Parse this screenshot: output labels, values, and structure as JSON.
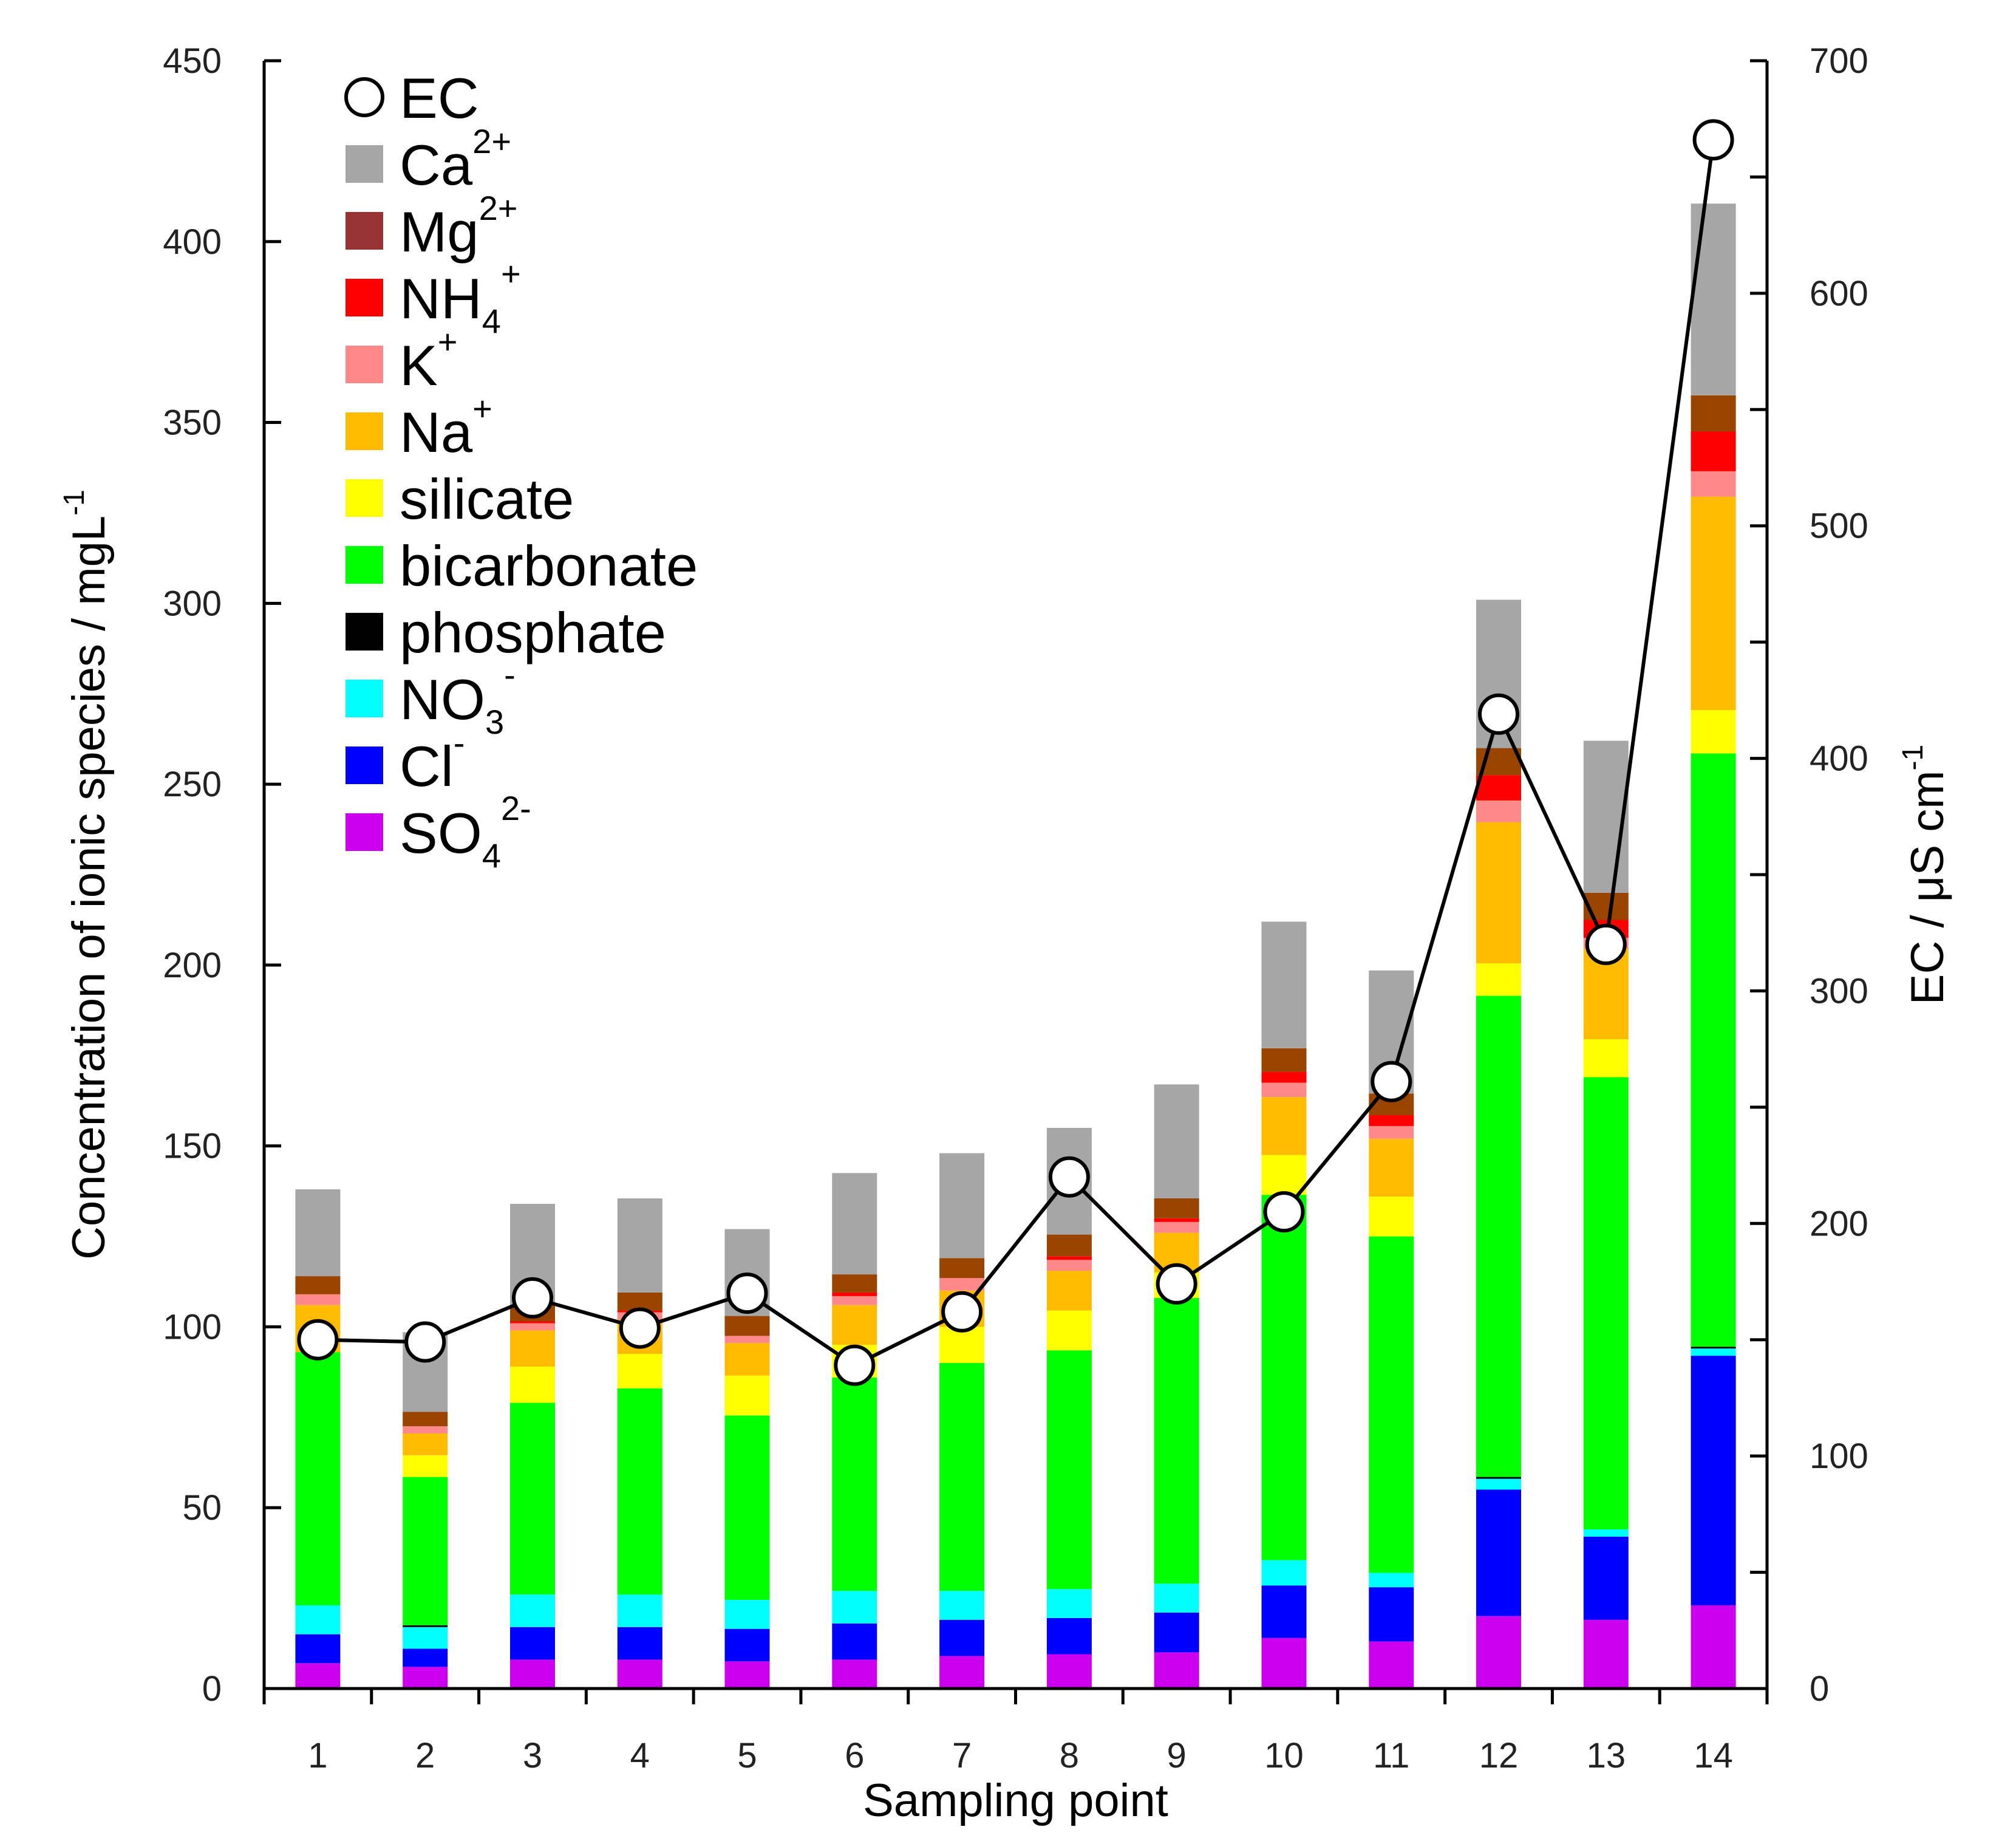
{
  "chart_data": {
    "type": "bar",
    "stacked": true,
    "xlabel": "Sampling point",
    "ylabel": "Concentration of ionic species / mgL",
    "ylabel_sup": "-1",
    "y2label": "EC / μS cm",
    "y2label_sup": "-1",
    "categories": [
      "1",
      "2",
      "3",
      "4",
      "5",
      "6",
      "7",
      "8",
      "9",
      "10",
      "11",
      "12",
      "13",
      "14"
    ],
    "ylim": [
      0,
      450
    ],
    "yticks": [
      "0",
      "50",
      "100",
      "150",
      "200",
      "250",
      "300",
      "350",
      "400",
      "450"
    ],
    "y2lim": [
      0,
      700
    ],
    "y2ticks": [
      "0",
      "100",
      "200",
      "300",
      "400",
      "500",
      "600",
      "700"
    ],
    "legend_position": "top-left",
    "series": [
      {
        "key": "so4",
        "color": "#cc00ee",
        "values": [
          7,
          6,
          8,
          8,
          7.5,
          8,
          9,
          9.5,
          10,
          14,
          13,
          20,
          19,
          23
        ]
      },
      {
        "key": "cl",
        "color": "#0000ff",
        "values": [
          8,
          5,
          9,
          9,
          9,
          10,
          10,
          10,
          11,
          14.5,
          15,
          35,
          23,
          69
        ]
      },
      {
        "key": "no3",
        "color": "#00ffff",
        "values": [
          8,
          6,
          9,
          9,
          8,
          9,
          8,
          8,
          8,
          7,
          4,
          3,
          2,
          2
        ]
      },
      {
        "key": "phosphate",
        "color": "#000000",
        "values": [
          0,
          0.5,
          0,
          0,
          0,
          0,
          0,
          0,
          0,
          0,
          0,
          0.5,
          0,
          0.5
        ]
      },
      {
        "key": "bicarbonate",
        "color": "#00ff00",
        "values": [
          70,
          41,
          53,
          57,
          51,
          59,
          63,
          66,
          79,
          101,
          93,
          133,
          125,
          164
        ]
      },
      {
        "key": "silicate",
        "color": "#ffff00",
        "values": [
          0,
          6,
          10,
          9.5,
          11,
          9,
          10,
          11,
          7,
          11,
          11,
          9,
          10.5,
          12
        ]
      },
      {
        "key": "na",
        "color": "#ffbb00",
        "values": [
          13,
          6,
          10,
          9.5,
          9,
          11,
          10,
          11,
          11,
          16,
          16,
          39,
          25,
          59
        ]
      },
      {
        "key": "k",
        "color": "#ff8888",
        "values": [
          3,
          2,
          2,
          2,
          2,
          2.5,
          3.5,
          3,
          3,
          4,
          3.5,
          6,
          3,
          7
        ]
      },
      {
        "key": "nh4",
        "color": "#ff0000",
        "values": [
          0,
          0,
          0.5,
          0.5,
          0,
          1,
          0,
          1,
          1,
          3,
          3,
          7,
          5,
          11
        ]
      },
      {
        "key": "mg",
        "color": "#994400",
        "values": [
          5,
          4,
          4.5,
          5,
          5.5,
          5,
          5.5,
          6,
          5.5,
          6.5,
          6,
          7.5,
          7.5,
          10
        ]
      },
      {
        "key": "ca",
        "color": "#a6a6a6",
        "values": [
          24,
          22,
          28,
          26,
          24,
          28,
          29,
          29.5,
          31.5,
          35,
          34,
          41,
          42,
          53
        ]
      }
    ],
    "ec": {
      "name": "EC",
      "values": [
        150,
        149,
        168,
        155,
        170,
        139,
        162,
        220,
        174,
        205,
        261,
        419,
        320,
        666
      ]
    },
    "legend": [
      {
        "key": "ec",
        "text": "EC",
        "sup": "",
        "sub": ""
      },
      {
        "key": "ca",
        "text": "Ca",
        "sup": "2+",
        "sub": ""
      },
      {
        "key": "mg",
        "text": "Mg",
        "sup": "2+",
        "sub": "",
        "color": "#993333"
      },
      {
        "key": "nh4",
        "text": "NH",
        "sub": "4",
        "sup": "+"
      },
      {
        "key": "k",
        "text": "K",
        "sup": "+",
        "sub": ""
      },
      {
        "key": "na",
        "text": "Na",
        "sup": "+",
        "sub": ""
      },
      {
        "key": "silicate",
        "text": "silicate",
        "sup": "",
        "sub": ""
      },
      {
        "key": "bicarbonate",
        "text": "bicarbonate",
        "sup": "",
        "sub": ""
      },
      {
        "key": "phosphate",
        "text": "phosphate",
        "sup": "",
        "sub": ""
      },
      {
        "key": "no3",
        "text": "NO",
        "sub": "3",
        "sup": "-"
      },
      {
        "key": "cl",
        "text": "Cl",
        "sup": "-",
        "sub": ""
      },
      {
        "key": "so4",
        "text": "SO",
        "sub": "4",
        "sup": "2-"
      }
    ]
  }
}
